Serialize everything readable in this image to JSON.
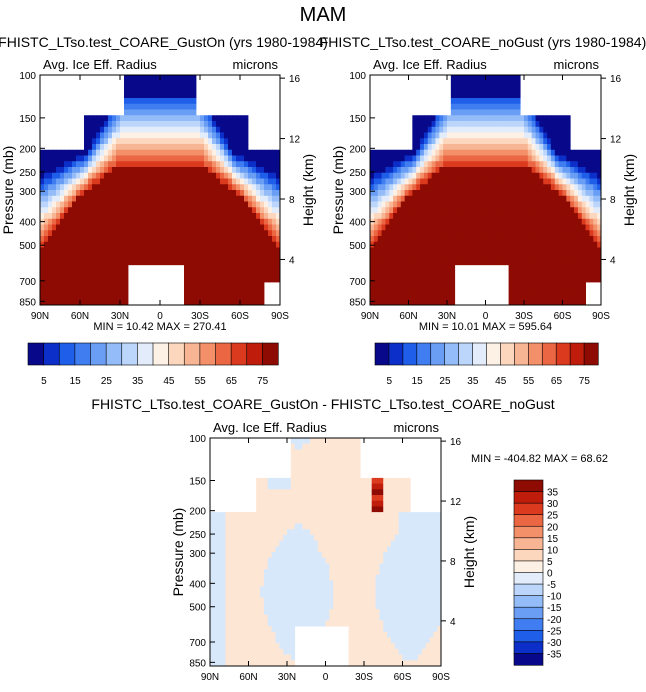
{
  "figure": {
    "title": "MAM"
  },
  "chart_data": [
    {
      "type": "heatmap",
      "title": "FHISTC_LTso.test_COARE_GustOn (yrs 1980-1984)",
      "subtitle_left": "Avg. Ice Eff. Radius",
      "subtitle_right": "microns",
      "ylabel": "Pressure (mb)",
      "ylabel_right": "Height (km)",
      "x_ticks": [
        "90N",
        "60N",
        "30N",
        "0",
        "30S",
        "60S",
        "90S"
      ],
      "y_ticks": [
        "100",
        "150",
        "200",
        "250",
        "300",
        "400",
        "500",
        "700",
        "850"
      ],
      "y_right_ticks": [
        "16",
        "12",
        "8",
        "4"
      ],
      "min_label": "MIN = 10.42",
      "max_label": "MAX = 270.41",
      "colorbar_labels": [
        "5",
        "15",
        "25",
        "35",
        "45",
        "55",
        "65",
        "75"
      ],
      "scale": "field"
    },
    {
      "type": "heatmap",
      "title": "FHISTC_LTso.test_COARE_noGust (yrs 1980-1984)",
      "subtitle_left": "Avg. Ice Eff. Radius",
      "subtitle_right": "microns",
      "ylabel": "Pressure (mb)",
      "ylabel_right": "Height (km)",
      "x_ticks": [
        "90N",
        "60N",
        "30N",
        "0",
        "30S",
        "60S",
        "90S"
      ],
      "y_ticks": [
        "100",
        "150",
        "200",
        "250",
        "300",
        "400",
        "500",
        "700",
        "850"
      ],
      "y_right_ticks": [
        "16",
        "12",
        "8",
        "4"
      ],
      "min_label": "MIN = 10.01",
      "max_label": "MAX = 595.64",
      "colorbar_labels": [
        "5",
        "15",
        "25",
        "35",
        "45",
        "55",
        "65",
        "75"
      ],
      "scale": "field"
    },
    {
      "type": "heatmap",
      "title": "FHISTC_LTso.test_COARE_GustOn - FHISTC_LTso.test_COARE_noGust",
      "subtitle_left": "Avg. Ice Eff. Radius",
      "subtitle_right": "microns",
      "ylabel": "Pressure (mb)",
      "ylabel_right": "Height (km)",
      "x_ticks": [
        "90N",
        "60N",
        "30N",
        "0",
        "30S",
        "60S",
        "90S"
      ],
      "y_ticks": [
        "100",
        "150",
        "200",
        "250",
        "300",
        "400",
        "500",
        "700",
        "850"
      ],
      "y_right_ticks": [
        "16",
        "12",
        "8",
        "4"
      ],
      "min_label": "MIN = -404.82",
      "max_label": "MAX = 68.62",
      "colorbar_labels": [
        "35",
        "30",
        "25",
        "20",
        "15",
        "10",
        "5",
        "0",
        "-5",
        "-10",
        "-15",
        "-20",
        "-25",
        "-30",
        "-35"
      ],
      "scale": "diff"
    }
  ],
  "colors": {
    "field_scale": [
      "#08088a",
      "#0b2fc8",
      "#1f5ee8",
      "#3f7df0",
      "#6a9ef5",
      "#93bcf8",
      "#bcd6fb",
      "#e2ecfb",
      "#fdf0e4",
      "#fcd6bd",
      "#f8b594",
      "#f3906a",
      "#eb6642",
      "#dc3a1e",
      "#c01c0c",
      "#8e0b04"
    ],
    "diff_scale": [
      "#8e0b04",
      "#c01c0c",
      "#dc3a1e",
      "#eb6642",
      "#f3906a",
      "#f8b594",
      "#fcd6bd",
      "#fdf0e4",
      "#e2ecfb",
      "#bcd6fb",
      "#93bcf8",
      "#6a9ef5",
      "#3f7df0",
      "#1f5ee8",
      "#0b2fc8",
      "#08088a"
    ],
    "diff_warm": "#fde6d4",
    "diff_cool": "#d8e8fb"
  }
}
